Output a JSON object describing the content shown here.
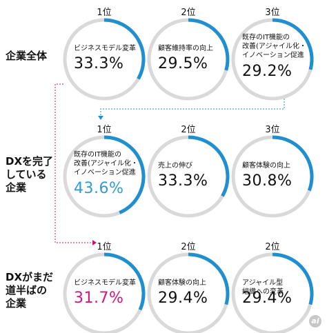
{
  "chart_data": {
    "type": "ring-grid",
    "groups": [
      {
        "label": "企業全体",
        "items": [
          {
            "rank": "1位",
            "label": "ビジネスモデル変革",
            "value_text": "33.3%",
            "value": 33.3,
            "value_color": "#111111"
          },
          {
            "rank": "2位",
            "label": "顧客維持率の向上",
            "value_text": "29.5%",
            "value": 29.5,
            "value_color": "#111111"
          },
          {
            "rank": "3位",
            "label": "既存のIT機能の\n改善(アジャイル化・\nイノベーション促進",
            "value_text": "29.2%",
            "value": 29.2,
            "value_color": "#111111"
          }
        ]
      },
      {
        "label": "DXを完了\nしている\n企業",
        "items": [
          {
            "rank": "1位",
            "label": "既存のIT機能の\n改善(アジャイル化・\nイノベーション促進",
            "value_text": "43.6%",
            "value": 43.6,
            "value_color": "#2e9cd6"
          },
          {
            "rank": "2位",
            "label": "売上の伸び",
            "value_text": "33.3%",
            "value": 33.3,
            "value_color": "#111111"
          },
          {
            "rank": "3位",
            "label": "顧客体験の向上",
            "value_text": "30.8%",
            "value": 30.8,
            "value_color": "#111111"
          }
        ]
      },
      {
        "label": "DXがまだ\n道半ばの\n企業",
        "items": [
          {
            "rank": "1位",
            "label": "ビジネスモデル変革",
            "value_text": "31.7%",
            "value": 31.7,
            "value_color": "#d4157a"
          },
          {
            "rank": "2位",
            "label": "顧客体験の向上",
            "value_text": "29.4%",
            "value": 29.4,
            "value_color": "#111111"
          },
          {
            "rank": "2位",
            "label": "アジャイル型\n組織への変革",
            "value_text": "29.4%",
            "value": 29.4,
            "value_color": "#111111"
          }
        ]
      }
    ],
    "ring_track_color": "#d9d9d9",
    "ring_fill_color": "#1f8fd0",
    "connector_color": "#c2147a",
    "connector_color_2": "#1f8fd0"
  },
  "watermark": "ai"
}
